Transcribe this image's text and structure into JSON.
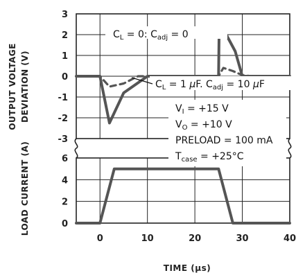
{
  "chart_data": [
    {
      "type": "line",
      "title": "",
      "xlabel": "",
      "ylabel": "OUTPUT VOLTAGE DEVIATION (V)",
      "ylim": [
        -3,
        3
      ],
      "xlim": [
        -5,
        40
      ],
      "y_ticks": [
        "3",
        "2",
        "1",
        "0",
        "-1",
        "-2",
        "-3"
      ],
      "series": [
        {
          "name": "C_L = 0: C_adj = 0",
          "style": "solid",
          "x": [
            -5,
            0,
            2,
            5,
            10,
            25,
            25.1,
            26.5,
            28.5,
            30,
            40
          ],
          "y": [
            0,
            0,
            -2.25,
            -0.8,
            0,
            0,
            1.9,
            2.05,
            1.2,
            0,
            0
          ]
        },
        {
          "name": "C_L = 1 µF, C_adj = 10 µF",
          "style": "dashed",
          "x": [
            -5,
            0,
            2,
            5,
            8,
            25,
            26,
            28,
            30,
            32,
            40
          ],
          "y": [
            0,
            0,
            -0.5,
            -0.35,
            0,
            0,
            0.4,
            0.25,
            0.05,
            0,
            0
          ]
        }
      ],
      "grid": true
    },
    {
      "type": "line",
      "title": "",
      "xlabel": "TIME (µs)",
      "ylabel": "LOAD CURRENT (A)",
      "ylim": [
        0,
        6
      ],
      "xlim": [
        -5,
        40
      ],
      "y_ticks": [
        "6",
        "4",
        "2",
        "0"
      ],
      "x_ticks": [
        "0",
        "10",
        "20",
        "30",
        "40"
      ],
      "series": [
        {
          "style": "solid",
          "x": [
            -5,
            0,
            3,
            25,
            28,
            40
          ],
          "y": [
            0,
            0,
            5,
            5,
            0,
            0
          ]
        }
      ],
      "grid": true
    }
  ],
  "annotations": {
    "curve1": {
      "p1": "C",
      "s1": "L",
      "p2": " = 0: C",
      "s2": "adj",
      "p3": " = 0"
    },
    "curve2": {
      "p1": "C",
      "s1": "L",
      "p2": " = 1 ",
      "mu1": "µ",
      "p3": "F. C",
      "s2": "adj",
      "p4": " = 10 ",
      "mu2": "µ",
      "p5": "F"
    },
    "vi": {
      "p1": "V",
      "s1": "I",
      "p2": " = +15 V"
    },
    "vo": {
      "p1": "V",
      "s1": "O",
      "p2": " = +10 V"
    },
    "preload": "PRELOAD = 100 mA",
    "tcase": {
      "p1": "T",
      "s1": "case",
      "p2": " = +25°C"
    }
  },
  "labels": {
    "y_top_line1": "OUTPUT VOLTAGE",
    "y_top_line2": "DEVIATION (V)",
    "y_bottom": "LOAD CURRENT (A)",
    "x_label_main": "TIME (",
    "x_label_mu": "µ",
    "x_label_end": "s)"
  },
  "colors": {
    "line": "#555555",
    "grid": "#222222",
    "text": "#111111"
  }
}
